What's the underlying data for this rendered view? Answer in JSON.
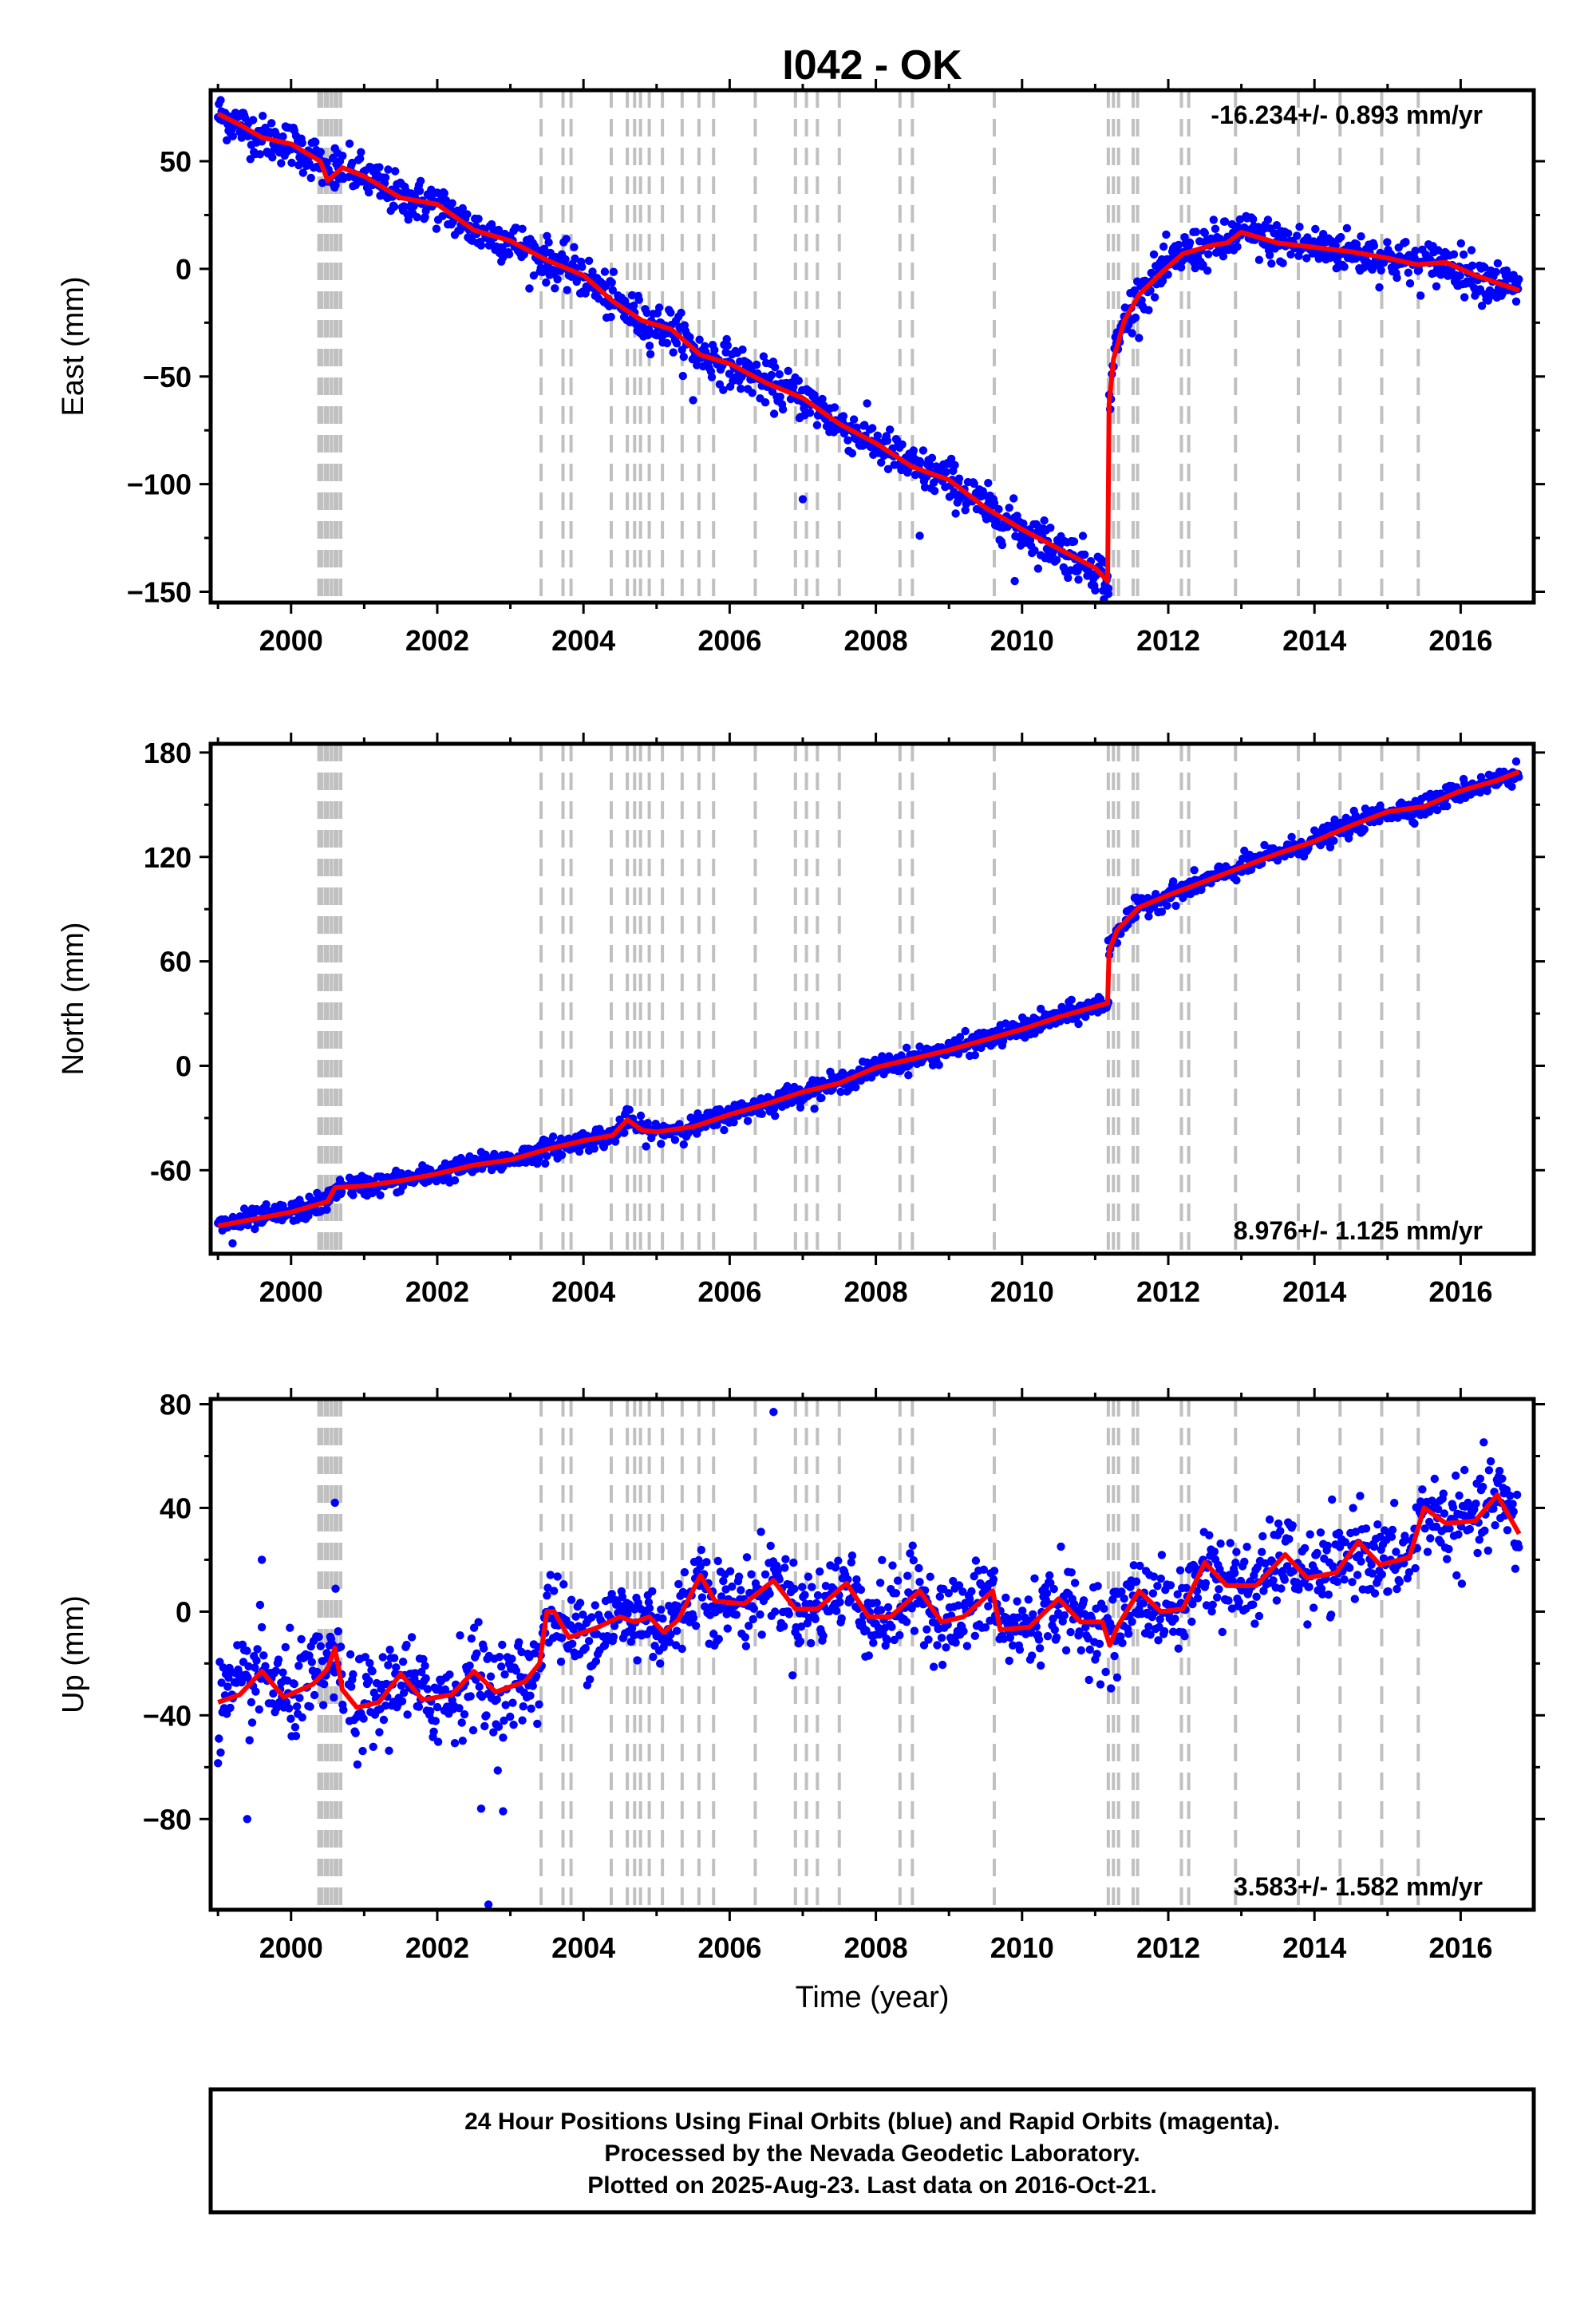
{
  "title": "I042 - OK",
  "xlabel": "Time (year)",
  "footer": {
    "line1": "24 Hour Positions Using Final Orbits (blue) and Rapid Orbits (magenta).",
    "line2": "Processed by the Nevada Geodetic Laboratory.",
    "line3": "Plotted on 2025-Aug-23. Last data on 2016-Oct-21."
  },
  "colors": {
    "data": "#0000ff",
    "model": "#ff0000",
    "event": "#c0c0c0",
    "frame": "#000000"
  },
  "chart_data": [
    {
      "type": "scatter",
      "name": "east",
      "ylabel": "East (mm)",
      "rate_text": "-16.234+/- 0.893 mm/yr",
      "rate_position": "top-right",
      "xlim": [
        1998.9,
        2017.0
      ],
      "ylim": [
        -155,
        83
      ],
      "yticks": [
        50,
        0,
        -50,
        -100,
        -150
      ],
      "ytick_labels": [
        "50",
        "0",
        "−50",
        "−100",
        "−150"
      ],
      "xticks": [
        2000,
        2002,
        2004,
        2006,
        2008,
        2010,
        2012,
        2014,
        2016
      ],
      "offsets": [
        {
          "t": 2011.19,
          "jump": 90
        }
      ],
      "model": {
        "pre": [
          [
            1999.0,
            72
          ],
          [
            1999.3,
            67
          ],
          [
            1999.6,
            61
          ],
          [
            2000.0,
            58
          ],
          [
            2000.4,
            50
          ],
          [
            2000.5,
            41
          ],
          [
            2000.7,
            47
          ],
          [
            2001.0,
            43
          ],
          [
            2001.5,
            33
          ],
          [
            2002.0,
            30
          ],
          [
            2002.5,
            18
          ],
          [
            2003.0,
            13
          ],
          [
            2003.5,
            4
          ],
          [
            2004.0,
            -3
          ],
          [
            2004.4,
            -15
          ],
          [
            2004.8,
            -24
          ],
          [
            2005.2,
            -28
          ],
          [
            2005.6,
            -40
          ],
          [
            2006.0,
            -44
          ],
          [
            2006.5,
            -53
          ],
          [
            2007.0,
            -60
          ],
          [
            2007.5,
            -72
          ],
          [
            2008.0,
            -81
          ],
          [
            2008.5,
            -92
          ],
          [
            2009.0,
            -98
          ],
          [
            2009.5,
            -111
          ],
          [
            2010.0,
            -121
          ],
          [
            2010.5,
            -130
          ],
          [
            2011.0,
            -139
          ],
          [
            2011.17,
            -145
          ]
        ],
        "post": [
          [
            2011.19,
            -63
          ],
          [
            2011.25,
            -42
          ],
          [
            2011.4,
            -24
          ],
          [
            2011.6,
            -12
          ],
          [
            2011.9,
            -2
          ],
          [
            2012.2,
            7
          ],
          [
            2012.6,
            11
          ],
          [
            2012.8,
            12
          ],
          [
            2013.0,
            17
          ],
          [
            2013.5,
            12
          ],
          [
            2014.0,
            10
          ],
          [
            2014.5,
            8
          ],
          [
            2015.0,
            5
          ],
          [
            2015.4,
            2
          ],
          [
            2015.8,
            3
          ],
          [
            2016.2,
            -3
          ],
          [
            2016.8,
            -10
          ]
        ]
      },
      "noise": 5,
      "outliers": [
        [
          2009.9,
          -145
        ],
        [
          2011.18,
          -151
        ],
        [
          2008.6,
          -124
        ],
        [
          2000.6,
          56
        ],
        [
          2005.5,
          -61
        ],
        [
          2007.0,
          -107
        ]
      ]
    },
    {
      "type": "scatter",
      "name": "north",
      "ylabel": "North (mm)",
      "rate_text": "8.976+/- 1.125 mm/yr",
      "rate_position": "bottom-right",
      "xlim": [
        1998.9,
        2017.0
      ],
      "ylim": [
        -108,
        185
      ],
      "yticks": [
        180,
        120,
        60,
        0,
        -60
      ],
      "ytick_labels": [
        "180",
        "120",
        "60",
        "0",
        "-60"
      ],
      "xticks": [
        2000,
        2002,
        2004,
        2006,
        2008,
        2010,
        2012,
        2014,
        2016
      ],
      "offsets": [
        {
          "t": 2011.19,
          "jump": 30
        }
      ],
      "model": {
        "pre": [
          [
            1999.0,
            -92
          ],
          [
            1999.5,
            -88
          ],
          [
            2000.0,
            -84
          ],
          [
            2000.5,
            -78
          ],
          [
            2000.6,
            -70
          ],
          [
            2001.0,
            -69
          ],
          [
            2001.5,
            -66
          ],
          [
            2002.0,
            -62
          ],
          [
            2002.5,
            -57
          ],
          [
            2003.0,
            -54
          ],
          [
            2003.5,
            -48
          ],
          [
            2004.0,
            -43
          ],
          [
            2004.4,
            -40
          ],
          [
            2004.6,
            -31
          ],
          [
            2004.8,
            -37
          ],
          [
            2005.0,
            -38
          ],
          [
            2005.5,
            -35
          ],
          [
            2006.0,
            -28
          ],
          [
            2006.5,
            -22
          ],
          [
            2007.0,
            -15
          ],
          [
            2007.5,
            -10
          ],
          [
            2008.0,
            -1
          ],
          [
            2008.5,
            4
          ],
          [
            2009.0,
            9
          ],
          [
            2009.5,
            15
          ],
          [
            2010.0,
            21
          ],
          [
            2010.5,
            28
          ],
          [
            2011.0,
            34
          ],
          [
            2011.17,
            36
          ]
        ],
        "post": [
          [
            2011.19,
            66
          ],
          [
            2011.3,
            78
          ],
          [
            2011.6,
            91
          ],
          [
            2012.0,
            98
          ],
          [
            2012.5,
            106
          ],
          [
            2013.0,
            114
          ],
          [
            2013.5,
            122
          ],
          [
            2014.0,
            129
          ],
          [
            2014.5,
            138
          ],
          [
            2015.0,
            146
          ],
          [
            2015.5,
            149
          ],
          [
            2016.0,
            158
          ],
          [
            2016.5,
            164
          ],
          [
            2016.8,
            169
          ]
        ]
      },
      "noise": 3,
      "outliers": [
        [
          1999.2,
          -102
        ],
        [
          2000.2,
          -88
        ],
        [
          2011.18,
          72
        ]
      ]
    },
    {
      "type": "scatter",
      "name": "up",
      "ylabel": "Up (mm)",
      "rate_text": "3.583+/- 1.582 mm/yr",
      "rate_position": "bottom-right",
      "xlim": [
        1998.9,
        2017.0
      ],
      "ylim": [
        -115,
        82
      ],
      "yticks": [
        80,
        40,
        0,
        -40,
        -80
      ],
      "ytick_labels": [
        "80",
        "40",
        "0",
        "−40",
        "−80"
      ],
      "xticks": [
        2000,
        2002,
        2004,
        2006,
        2008,
        2010,
        2012,
        2014,
        2016
      ],
      "offsets": [],
      "model": {
        "pre": [
          [
            1999.0,
            -35
          ],
          [
            1999.3,
            -32
          ],
          [
            1999.6,
            -23
          ],
          [
            1999.9,
            -33
          ],
          [
            2000.3,
            -28
          ],
          [
            2000.5,
            -22
          ],
          [
            2000.6,
            -14
          ],
          [
            2000.7,
            -30
          ],
          [
            2000.9,
            -37
          ],
          [
            2001.2,
            -35
          ],
          [
            2001.5,
            -24
          ],
          [
            2001.8,
            -34
          ],
          [
            2002.2,
            -32
          ],
          [
            2002.5,
            -23
          ],
          [
            2002.8,
            -31
          ],
          [
            2003.2,
            -27
          ],
          [
            2003.4,
            -20
          ],
          [
            2003.5,
            0
          ],
          [
            2003.6,
            0
          ],
          [
            2003.8,
            -10
          ],
          [
            2004.2,
            -6
          ],
          [
            2004.5,
            -2
          ],
          [
            2004.7,
            -4
          ],
          [
            2004.9,
            -2
          ],
          [
            2005.1,
            -8
          ],
          [
            2005.3,
            -3
          ],
          [
            2005.6,
            14
          ],
          [
            2005.8,
            4
          ],
          [
            2006.2,
            3
          ],
          [
            2006.6,
            12
          ],
          [
            2006.9,
            1
          ],
          [
            2007.2,
            1
          ],
          [
            2007.6,
            11
          ],
          [
            2007.9,
            -2
          ],
          [
            2008.2,
            -2
          ],
          [
            2008.6,
            8
          ],
          [
            2008.9,
            -4
          ],
          [
            2009.2,
            -2
          ],
          [
            2009.6,
            8
          ],
          [
            2009.7,
            -7
          ],
          [
            2010.1,
            -6
          ],
          [
            2010.5,
            5
          ],
          [
            2010.8,
            -4
          ],
          [
            2011.1,
            -4
          ],
          [
            2011.2,
            -13
          ],
          [
            2011.3,
            -6
          ],
          [
            2011.6,
            8
          ],
          [
            2011.9,
            0
          ],
          [
            2012.2,
            1
          ],
          [
            2012.5,
            19
          ],
          [
            2012.8,
            10
          ],
          [
            2013.2,
            10
          ],
          [
            2013.6,
            22
          ],
          [
            2013.9,
            13
          ],
          [
            2014.3,
            15
          ],
          [
            2014.6,
            27
          ],
          [
            2014.9,
            18
          ],
          [
            2015.3,
            21
          ],
          [
            2015.5,
            40
          ],
          [
            2015.8,
            34
          ],
          [
            2016.2,
            35
          ],
          [
            2016.5,
            45
          ],
          [
            2016.8,
            30
          ]
        ]
      },
      "noise": 8,
      "outliers": [
        [
          2002.7,
          -113
        ],
        [
          2002.6,
          -76
        ],
        [
          1999.4,
          -80
        ],
        [
          1999.6,
          20
        ],
        [
          2006.6,
          77
        ],
        [
          2000.6,
          42
        ],
        [
          2002.9,
          -77
        ]
      ]
    }
  ],
  "event_lines": [
    2000.38,
    2000.42,
    2000.47,
    2000.5,
    2000.55,
    2000.6,
    2000.63,
    2000.68,
    2003.42,
    2003.72,
    2003.83,
    2004.38,
    2004.6,
    2004.7,
    2004.78,
    2004.9,
    2005.08,
    2005.35,
    2005.58,
    2005.78,
    2006.35,
    2006.9,
    2007.05,
    2007.2,
    2007.5,
    2008.33,
    2008.5,
    2009.62,
    2011.18,
    2011.25,
    2011.32,
    2011.52,
    2011.58,
    2012.18,
    2012.28,
    2012.92,
    2013.78,
    2014.35,
    2014.92,
    2015.42
  ]
}
